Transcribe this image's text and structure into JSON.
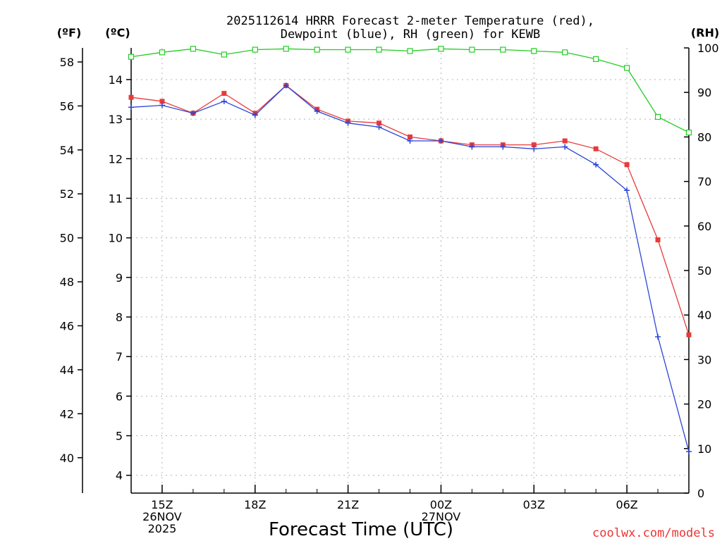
{
  "chart_data": {
    "type": "line",
    "title_line1": "2025112614 HRRR Forecast 2-meter Temperature (red),",
    "title_line2": "Dewpoint (blue), RH (green) for KEWB",
    "units": {
      "fahrenheit": "(ºF)",
      "celsius": "(ºC)",
      "rh": "(RH)"
    },
    "xlabel": "Forecast Time (UTC)",
    "credit": "coolwx.com/models",
    "x_hours": [
      14,
      15,
      16,
      17,
      18,
      19,
      20,
      21,
      22,
      23,
      24,
      25,
      26,
      27,
      28,
      29,
      30,
      31,
      32
    ],
    "xlim": [
      14,
      32
    ],
    "x_ticks": [
      {
        "hour": 15,
        "lines": [
          "15Z",
          "26NOV",
          "2025"
        ]
      },
      {
        "hour": 18,
        "lines": [
          "18Z"
        ]
      },
      {
        "hour": 21,
        "lines": [
          "21Z"
        ]
      },
      {
        "hour": 24,
        "lines": [
          "00Z",
          "27NOV"
        ]
      },
      {
        "hour": 27,
        "lines": [
          "03Z"
        ]
      },
      {
        "hour": 30,
        "lines": [
          "06Z"
        ]
      }
    ],
    "celsius_axis": {
      "ylim": [
        3.55,
        14.8
      ],
      "ticks": [
        "4",
        "5",
        "6",
        "7",
        "8",
        "9",
        "10",
        "11",
        "12",
        "13",
        "14"
      ]
    },
    "fahrenheit_axis": {
      "ticks": [
        "40",
        "42",
        "44",
        "46",
        "48",
        "50",
        "52",
        "54",
        "56",
        "58"
      ]
    },
    "rh_axis": {
      "ylim": [
        0,
        100
      ],
      "ticks": [
        "0",
        "10",
        "20",
        "30",
        "40",
        "50",
        "60",
        "70",
        "80",
        "90",
        "100"
      ]
    },
    "series": [
      {
        "name": "Temperature",
        "units": "C",
        "color": "#e83a3a",
        "marker": "square",
        "values": [
          13.55,
          13.45,
          13.15,
          13.65,
          13.15,
          13.85,
          13.25,
          12.95,
          12.9,
          12.55,
          12.45,
          12.35,
          12.35,
          12.35,
          12.45,
          12.25,
          11.85,
          9.95,
          7.55
        ]
      },
      {
        "name": "Dewpoint",
        "units": "C",
        "color": "#2b45d8",
        "marker": "plus",
        "values": [
          13.3,
          13.35,
          13.15,
          13.45,
          13.1,
          13.85,
          13.2,
          12.9,
          12.8,
          12.45,
          12.45,
          12.3,
          12.3,
          12.25,
          12.3,
          11.85,
          11.2,
          7.5,
          4.6
        ]
      },
      {
        "name": "RH",
        "units": "%",
        "color": "#22cc22",
        "marker": "open-square",
        "values": [
          98,
          99,
          99.8,
          98.5,
          99.6,
          99.8,
          99.6,
          99.6,
          99.6,
          99.3,
          99.8,
          99.6,
          99.6,
          99.3,
          99,
          97.5,
          95.5,
          84.5,
          81
        ]
      }
    ]
  }
}
